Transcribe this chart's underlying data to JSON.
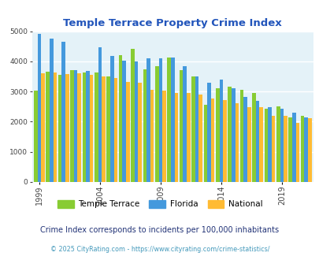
{
  "title": "Temple Terrace Property Crime Index",
  "years": [
    1999,
    2000,
    2001,
    2002,
    2003,
    2004,
    2005,
    2006,
    2007,
    2008,
    2009,
    2010,
    2011,
    2012,
    2013,
    2014,
    2015,
    2016,
    2017,
    2018,
    2019,
    2020,
    2021
  ],
  "temple_terrace": [
    3020,
    3650,
    3560,
    3700,
    3640,
    3640,
    3500,
    4200,
    4420,
    3730,
    3850,
    4130,
    3700,
    3500,
    2550,
    3100,
    3150,
    3060,
    2950,
    2420,
    2520,
    2150,
    2200
  ],
  "florida": [
    4900,
    4750,
    4650,
    3700,
    3680,
    4480,
    4180,
    4030,
    4000,
    4100,
    4110,
    4130,
    3850,
    3490,
    3280,
    3400,
    3110,
    2820,
    2700,
    2490,
    2420,
    2300,
    2150
  ],
  "national": [
    3600,
    3640,
    3570,
    3600,
    3560,
    3490,
    3440,
    3330,
    3290,
    3050,
    3030,
    2960,
    2960,
    2900,
    2760,
    2720,
    2610,
    2490,
    2490,
    2190,
    2190,
    1960,
    2110
  ],
  "temple_color": "#88cc33",
  "florida_color": "#4499dd",
  "national_color": "#ffbb33",
  "plot_bg": "#e4f2f8",
  "ylabel_ticks": [
    0,
    1000,
    2000,
    3000,
    4000,
    5000
  ],
  "xtick_years": [
    1999,
    2004,
    2009,
    2014,
    2019
  ],
  "subtitle": "Crime Index corresponds to incidents per 100,000 inhabitants",
  "footer": "© 2025 CityRating.com - https://www.cityrating.com/crime-statistics/",
  "title_color": "#2255bb",
  "subtitle_color": "#223377",
  "footer_color": "#4499bb"
}
